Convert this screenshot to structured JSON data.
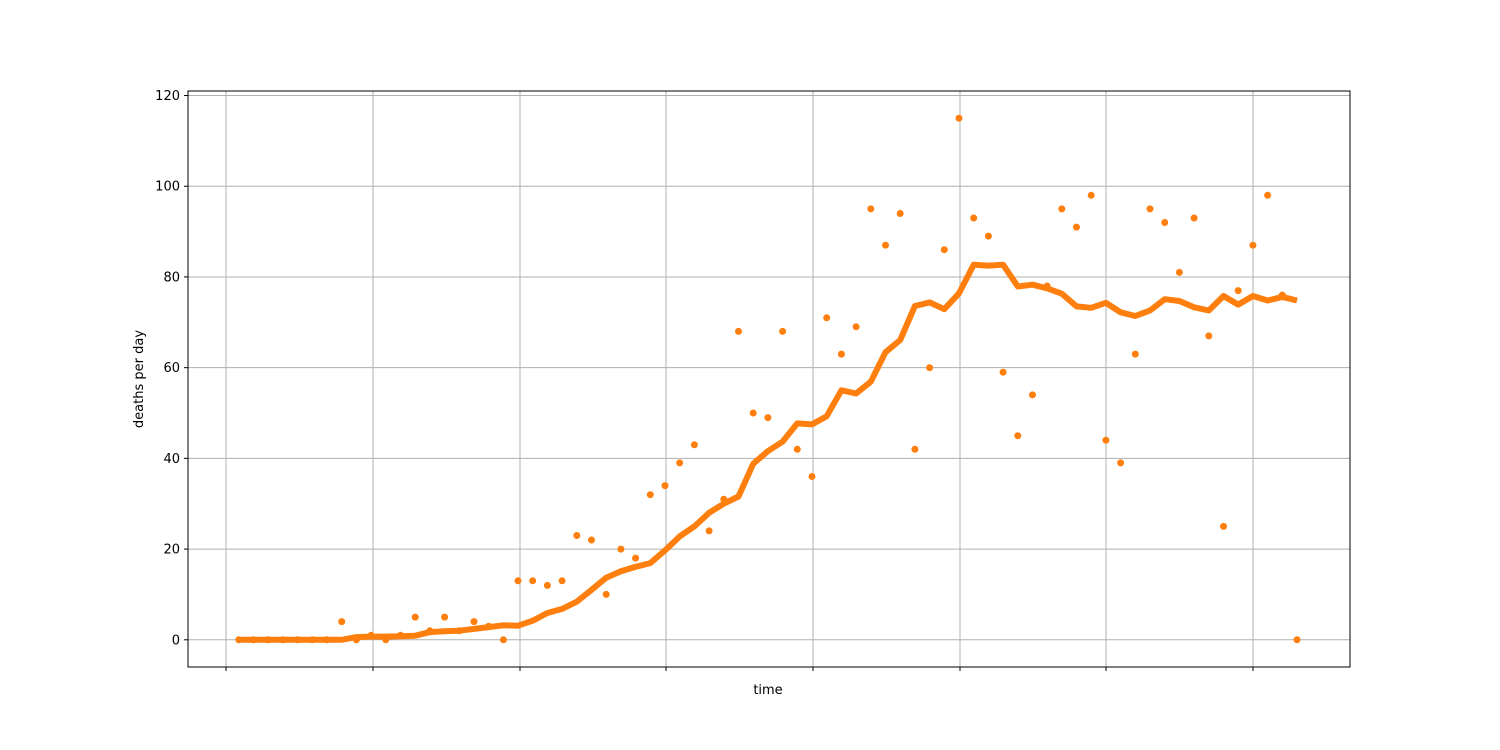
{
  "colors": {
    "series": "#ff7f0e",
    "grid": "#b0b0b0"
  },
  "chart_data": {
    "type": "line",
    "xlabel": "time",
    "ylabel": "deaths per day",
    "grid": true,
    "ylim": [
      -6,
      121
    ],
    "yticks": [
      0,
      20,
      40,
      60,
      80,
      100,
      120
    ],
    "x_tick_labels_shown": false,
    "series": [
      {
        "kind": "scatter",
        "x": [
          0,
          1,
          2,
          3,
          4,
          5,
          6,
          7,
          8,
          9,
          10,
          11,
          12,
          13,
          14,
          15,
          16,
          17,
          18,
          19,
          20,
          21,
          22,
          23,
          24,
          25,
          26,
          27,
          28,
          29,
          30,
          31,
          32,
          33,
          34,
          35,
          36,
          37,
          38,
          39,
          40,
          41,
          42,
          43,
          44,
          45,
          46,
          47,
          48,
          49,
          50,
          51,
          52,
          53,
          54,
          55,
          56,
          57,
          58,
          59,
          60,
          61,
          62,
          63,
          64,
          65,
          66,
          67,
          68,
          69,
          70,
          71,
          72
        ],
        "values": [
          0,
          0,
          0,
          0,
          0,
          0,
          0,
          4,
          0,
          1,
          0,
          1,
          5,
          2,
          5,
          2,
          4,
          3,
          0,
          13,
          13,
          12,
          13,
          23,
          22,
          10,
          20,
          18,
          32,
          34,
          39,
          43,
          24,
          31,
          68,
          50,
          49,
          68,
          42,
          36,
          71,
          63,
          69,
          95,
          87,
          94,
          42,
          60,
          86,
          115,
          93,
          89,
          59,
          45,
          54,
          78,
          95,
          91,
          98,
          44,
          39,
          63,
          95,
          92,
          81,
          93,
          67,
          25,
          77,
          87,
          98,
          76,
          0
        ]
      },
      {
        "kind": "line",
        "x": [
          0,
          1,
          2,
          3,
          4,
          5,
          6,
          7,
          8,
          9,
          10,
          11,
          12,
          13,
          14,
          15,
          16,
          17,
          18,
          19,
          20,
          21,
          22,
          23,
          24,
          25,
          26,
          27,
          28,
          29,
          30,
          31,
          32,
          33,
          34,
          35,
          36,
          37,
          38,
          39,
          40,
          41,
          42,
          43,
          44,
          45,
          46,
          47,
          48,
          49,
          50,
          51,
          52,
          53,
          54,
          55,
          56,
          57,
          58,
          59,
          60,
          61,
          62,
          63,
          64,
          65,
          66,
          67,
          68,
          69,
          70,
          71,
          72
        ],
        "values": [
          0,
          0,
          0,
          0,
          0,
          0,
          0,
          0,
          0.6,
          0.7,
          0.7,
          0.8,
          0.9,
          1.7,
          1.9,
          2.0,
          2.4,
          2.8,
          3.2,
          3.1,
          4.2,
          5.9,
          6.8,
          8.4,
          11.0,
          13.7,
          15.1,
          16.1,
          16.9,
          19.7,
          22.8,
          25.0,
          28.0,
          30.0,
          31.6,
          38.8,
          41.6,
          43.7,
          47.7,
          47.5,
          49.3,
          55.0,
          54.3,
          56.9,
          63.4,
          66.1,
          73.6,
          74.4,
          72.9,
          76.4,
          82.7,
          82.5,
          82.7,
          77.9,
          78.3,
          77.5,
          76.3,
          73.5,
          73.2,
          74.3,
          72.2,
          71.4,
          72.6,
          75.1,
          74.7,
          73.3,
          72.6,
          75.8,
          73.9,
          75.8,
          74.8,
          75.6,
          74.8
        ]
      }
    ]
  }
}
